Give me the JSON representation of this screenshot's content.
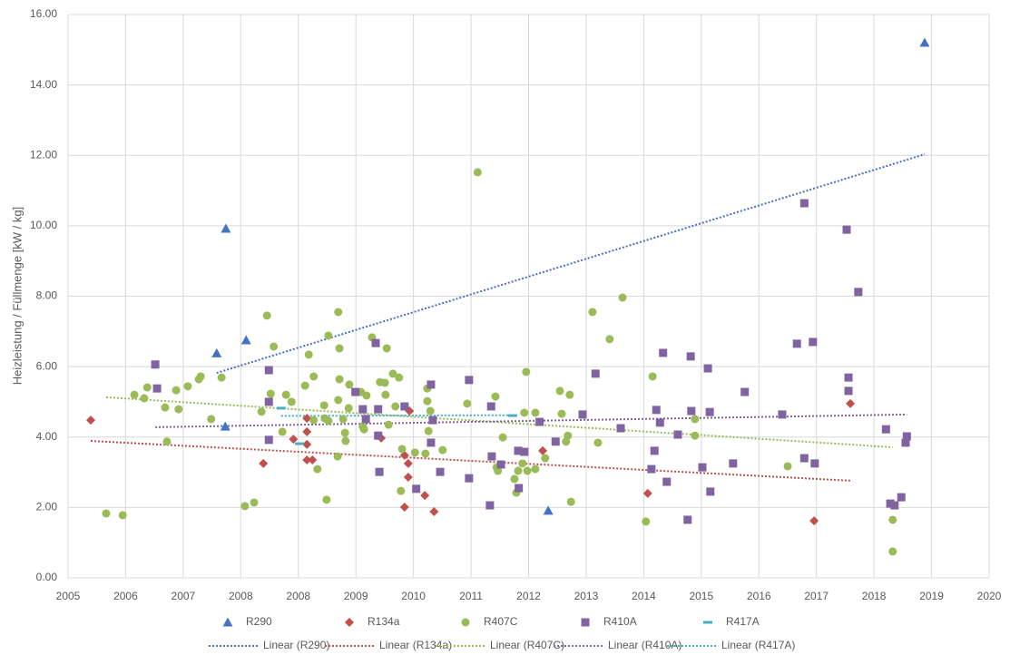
{
  "chart_data": {
    "type": "scatter",
    "y_label": "Heizleistung / Füllmenge [kW / kg]",
    "xlim": [
      2005,
      2020
    ],
    "xticks": [
      {
        "value": 2005,
        "label": "2005"
      },
      {
        "value": 2005.9375,
        "label": "2006"
      },
      {
        "value": 2006.875,
        "label": "2007"
      },
      {
        "value": 2007.8125,
        "label": "2008"
      },
      {
        "value": 2008.75,
        "label": "2008"
      },
      {
        "value": 2009.6875,
        "label": "2009"
      },
      {
        "value": 2010.625,
        "label": "2010"
      },
      {
        "value": 2011.5625,
        "label": "2011"
      },
      {
        "value": 2012.5,
        "label": "2012"
      },
      {
        "value": 2013.4375,
        "label": "2013"
      },
      {
        "value": 2014.375,
        "label": "2014"
      },
      {
        "value": 2015.3125,
        "label": "2015"
      },
      {
        "value": 2016.25,
        "label": "2016"
      },
      {
        "value": 2017.1875,
        "label": "2017"
      },
      {
        "value": 2018.125,
        "label": "2018"
      },
      {
        "value": 2019.0625,
        "label": "2019"
      },
      {
        "value": 2020,
        "label": "2020"
      }
    ],
    "ylim": [
      0,
      16
    ],
    "yticks": [
      {
        "value": 0,
        "label": "0.00"
      },
      {
        "value": 2,
        "label": "2.00"
      },
      {
        "value": 4,
        "label": "4.00"
      },
      {
        "value": 6,
        "label": "6.00"
      },
      {
        "value": 8,
        "label": "8.00"
      },
      {
        "value": 10,
        "label": "10.00"
      },
      {
        "value": 12,
        "label": "12.00"
      },
      {
        "value": 14,
        "label": "14.00"
      },
      {
        "value": 16,
        "label": "16.00"
      }
    ],
    "grid": true,
    "legend": "bottom",
    "series": [
      {
        "name": "R290",
        "color": "#4472c4",
        "marker": "triangle",
        "x": [
          2007.42,
          2007.57,
          2007.56,
          2007.9,
          2012.82,
          2018.95
        ],
        "values": [
          6.38,
          9.92,
          4.3,
          6.75,
          1.91,
          15.2
        ]
      },
      {
        "name": "R134a",
        "color": "#c0504d",
        "marker": "diamond",
        "x": [
          2005.37,
          2008.18,
          2008.67,
          2008.89,
          2008.89,
          2008.89,
          2008.89,
          2008.98,
          2010.1,
          2010.48,
          2010.54,
          2010.48,
          2010.56,
          2010.81,
          2010.96,
          2012.73,
          2014.44,
          2017.15,
          2017.74,
          2010.54
        ],
        "values": [
          4.48,
          3.25,
          3.94,
          4.53,
          4.15,
          3.79,
          3.35,
          3.35,
          3.97,
          3.48,
          2.86,
          2.01,
          4.74,
          2.34,
          1.88,
          3.61,
          2.4,
          1.62,
          4.95,
          3.25
        ]
      },
      {
        "name": "R407C",
        "color": "#9bbb59",
        "marker": "circle",
        "x": [
          2005.62,
          2005.89,
          2006.08,
          2006.24,
          2006.29,
          2006.61,
          2006.58,
          2006.76,
          2006.8,
          2006.95,
          2007.13,
          2007.16,
          2007.33,
          2007.5,
          2007.88,
          2008.03,
          2008.15,
          2008.24,
          2008.3,
          2008.35,
          2008.49,
          2008.55,
          2008.64,
          2008.86,
          2008.92,
          2009.0,
          2009.0,
          2009.06,
          2009.17,
          2009.18,
          2009.21,
          2009.24,
          2009.24,
          2009.39,
          2009.4,
          2009.42,
          2009.42,
          2009.4,
          2009.48,
          2009.51,
          2009.52,
          2009.57,
          2009.58,
          2009.77,
          2009.8,
          2009.82,
          2009.86,
          2009.95,
          2010.08,
          2010.16,
          2010.17,
          2010.19,
          2010.22,
          2010.29,
          2010.33,
          2010.39,
          2010.44,
          2010.42,
          2010.65,
          2010.82,
          2010.85,
          2010.85,
          2010.87,
          2010.9,
          2011.1,
          2011.5,
          2011.67,
          2011.96,
          2011.98,
          2012.0,
          2012.08,
          2012.27,
          2012.3,
          2012.33,
          2012.4,
          2012.43,
          2012.46,
          2012.48,
          2012.61,
          2012.61,
          2012.77,
          2013.01,
          2013.04,
          2013.11,
          2013.14,
          2013.17,
          2013.19,
          2013.54,
          2013.63,
          2013.82,
          2014.03,
          2014.41,
          2014.52,
          2015.21,
          2015.21,
          2016.72,
          2018.43,
          2018.43
        ],
        "values": [
          1.83,
          1.78,
          5.2,
          5.1,
          5.41,
          3.87,
          4.84,
          5.33,
          4.79,
          5.44,
          5.64,
          5.72,
          4.51,
          5.69,
          2.04,
          2.14,
          4.72,
          7.45,
          5.23,
          6.57,
          4.15,
          5.2,
          5.0,
          5.46,
          6.34,
          5.72,
          4.48,
          3.09,
          4.9,
          4.53,
          2.22,
          6.88,
          4.46,
          3.45,
          7.55,
          6.52,
          5.64,
          5.05,
          4.51,
          4.12,
          3.89,
          4.82,
          5.49,
          5.28,
          4.3,
          4.22,
          5.18,
          6.83,
          5.56,
          5.54,
          5.2,
          6.52,
          4.35,
          5.8,
          4.87,
          5.69,
          3.66,
          2.47,
          3.56,
          3.53,
          5.38,
          5.02,
          4.17,
          4.74,
          3.63,
          4.95,
          11.52,
          5.15,
          3.14,
          3.04,
          3.99,
          2.81,
          2.42,
          3.04,
          3.25,
          4.69,
          5.85,
          3.04,
          3.09,
          4.69,
          3.4,
          5.31,
          4.66,
          3.87,
          4.04,
          5.2,
          2.16,
          7.55,
          3.84,
          6.78,
          7.96,
          1.6,
          5.72,
          4.51,
          4.04,
          3.17,
          1.65,
          0.75
        ]
      },
      {
        "name": "R410A",
        "color": "#8064a2",
        "marker": "square",
        "x": [
          2006.42,
          2006.45,
          2008.27,
          2008.27,
          2008.27,
          2009.68,
          2009.8,
          2009.85,
          2010.01,
          2010.05,
          2010.07,
          2010.05,
          2010.48,
          2010.67,
          2010.91,
          2010.94,
          2010.91,
          2011.06,
          2011.53,
          2011.53,
          2011.89,
          2011.87,
          2011.9,
          2012.05,
          2012.33,
          2012.34,
          2012.43,
          2012.68,
          2012.94,
          2013.38,
          2013.59,
          2014.0,
          2014.5,
          2014.55,
          2014.58,
          2014.64,
          2014.69,
          2014.75,
          2014.93,
          2015.09,
          2015.14,
          2015.15,
          2015.33,
          2015.42,
          2015.45,
          2015.46,
          2015.83,
          2016.02,
          2016.63,
          2016.87,
          2016.99,
          2016.99,
          2017.13,
          2017.16,
          2017.68,
          2017.71,
          2017.71,
          2017.87,
          2018.32,
          2018.39,
          2018.46,
          2018.57,
          2018.64,
          2018.66
        ],
        "values": [
          6.06,
          5.38,
          5.9,
          5.0,
          3.92,
          5.28,
          4.79,
          4.51,
          6.67,
          4.79,
          3.01,
          4.04,
          4.87,
          2.53,
          5.49,
          4.48,
          3.84,
          3.01,
          5.62,
          2.83,
          4.87,
          2.06,
          3.45,
          3.22,
          3.61,
          2.55,
          3.58,
          4.43,
          3.87,
          4.64,
          5.8,
          4.25,
          3.09,
          3.61,
          4.77,
          4.41,
          6.39,
          2.73,
          4.07,
          1.65,
          6.29,
          4.74,
          3.14,
          5.95,
          4.71,
          2.45,
          3.25,
          5.28,
          4.64,
          6.65,
          10.64,
          3.4,
          6.7,
          3.25,
          9.89,
          5.31,
          5.69,
          8.12,
          4.22,
          2.11,
          2.06,
          2.29,
          3.84,
          4.02
        ]
      },
      {
        "name": "R417A",
        "color": "#4bacc6",
        "marker": "dash",
        "x": [
          2008.47,
          2008.77,
          2012.24
        ],
        "values": [
          4.82,
          3.81,
          4.61
        ]
      }
    ],
    "trendlines": [
      {
        "name": "Linear (R290)",
        "color": "#4472c4",
        "x": [
          2007.42,
          2018.95
        ],
        "values": [
          5.82,
          12.03
        ]
      },
      {
        "name": "Linear (R134a)",
        "color": "#c0504d",
        "x": [
          2005.37,
          2017.74
        ],
        "values": [
          3.89,
          2.76
        ]
      },
      {
        "name": "Linear (R407C)",
        "color": "#9bbb59",
        "x": [
          2005.62,
          2018.43
        ],
        "values": [
          5.13,
          3.71
        ]
      },
      {
        "name": "Linear (R410A)",
        "color": "#8064a2",
        "x": [
          2006.42,
          2018.66
        ],
        "values": [
          4.28,
          4.64
        ]
      },
      {
        "name": "Linear (R417A)",
        "color": "#4bacc6",
        "x": [
          2008.47,
          2012.24
        ],
        "values": [
          4.6,
          4.62
        ]
      }
    ]
  }
}
